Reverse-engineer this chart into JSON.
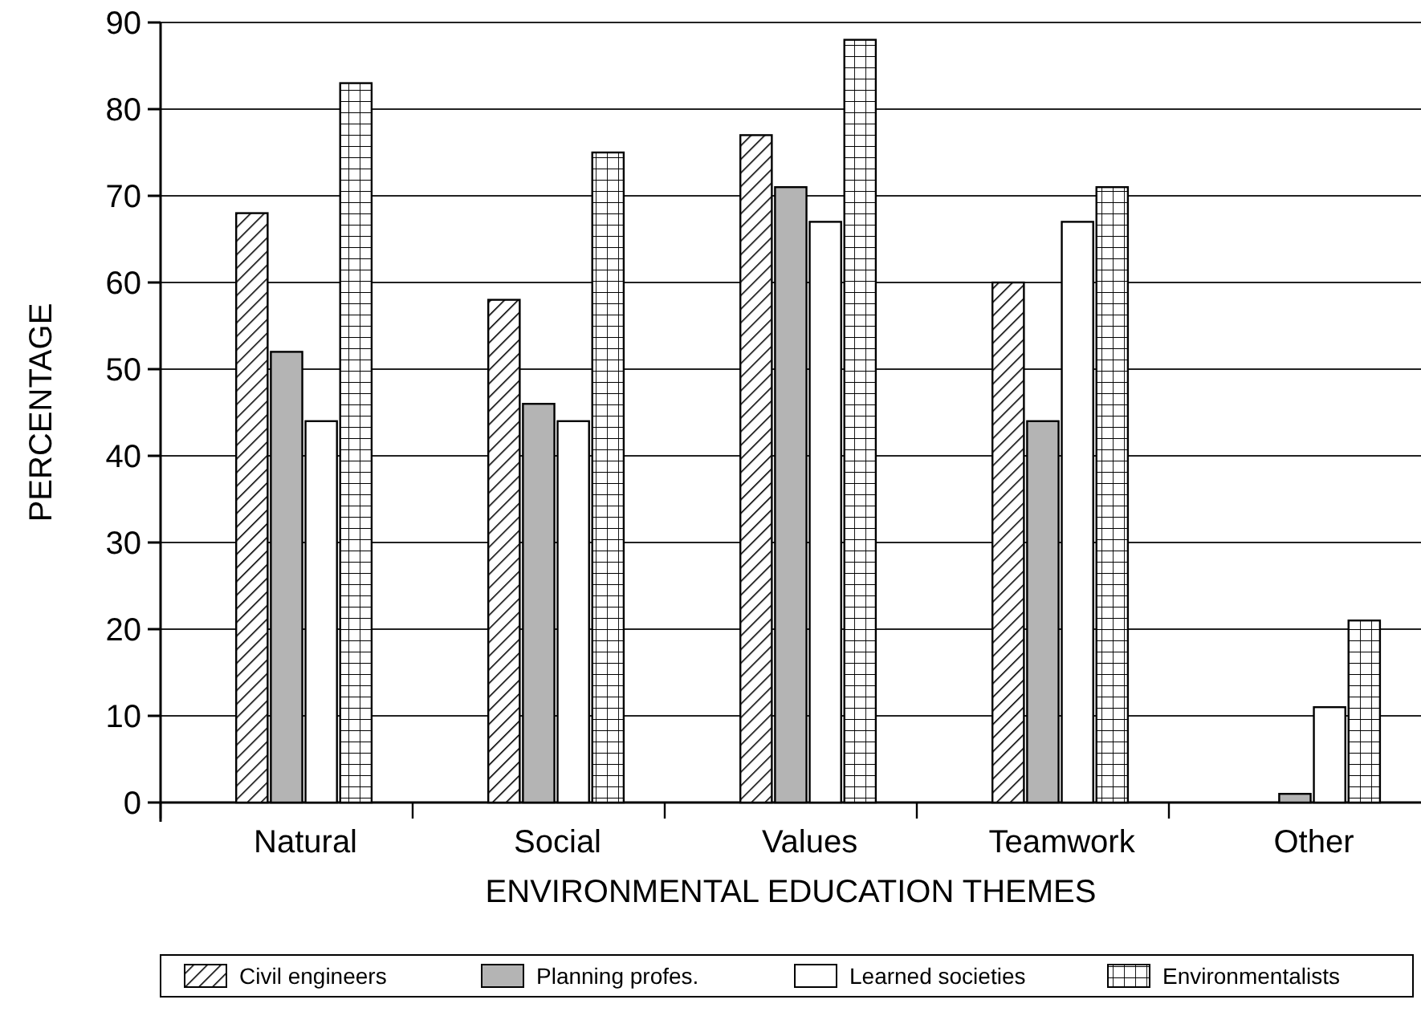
{
  "chart_data": {
    "type": "bar",
    "xlabel": "ENVIRONMENTAL EDUCATION THEMES",
    "ylabel": "PERCENTAGE",
    "categories": [
      "Natural",
      "Social",
      "Values",
      "Teamwork",
      "Other"
    ],
    "series": [
      {
        "name": "Civil engineers",
        "color": "#ffffff",
        "values": [
          68,
          58,
          77,
          60,
          0
        ]
      },
      {
        "name": "Planning profes.",
        "color": "#b4b4b4",
        "values": [
          52,
          46,
          71,
          44,
          1
        ]
      },
      {
        "name": "Learned societies",
        "color": "#ffffff",
        "values": [
          44,
          44,
          67,
          67,
          11
        ]
      },
      {
        "name": "Environmentalists",
        "color": "#ffffff",
        "values": [
          83,
          75,
          88,
          71,
          21
        ]
      }
    ],
    "ylim": [
      0,
      90
    ],
    "yticks": [
      0,
      10,
      20,
      30,
      40,
      50,
      60,
      70,
      80,
      90
    ],
    "grid": "y",
    "legend": "bottom"
  }
}
